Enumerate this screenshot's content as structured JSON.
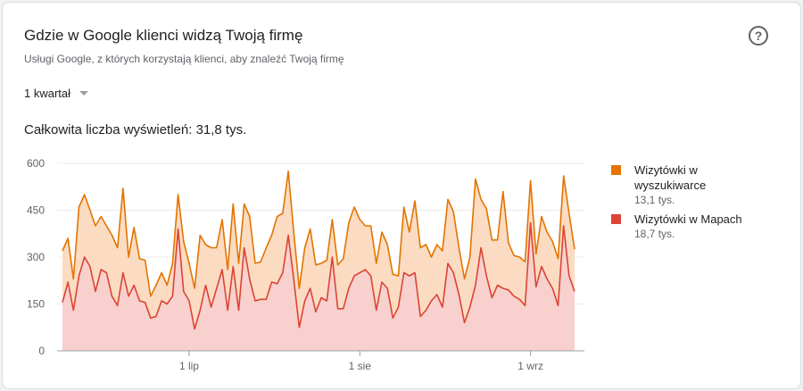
{
  "card": {
    "title": "Gdzie w Google klienci widzą Twoją firmę",
    "subtitle": "Usługi Google, z których korzystają klienci, aby znaleźć Twoją firmę",
    "help_icon": "help-circle-icon",
    "period": {
      "selected": "1 kwartał",
      "icon": "caret-down-icon"
    },
    "total": "Całkowita liczba wyświetleń: 31,8 tys."
  },
  "legend": [
    {
      "label": "Wizytówki w wyszukiwarce",
      "value": "13,1 tys.",
      "color": "#e37400"
    },
    {
      "label": "Wizytówki w Mapach",
      "value": "18,7 tys.",
      "color": "#db4437"
    }
  ],
  "chart_data": {
    "type": "area",
    "stacked": true,
    "ylim": [
      0,
      600
    ],
    "yticks": [
      0,
      150,
      300,
      450,
      600
    ],
    "x_tick_labels": [
      {
        "label": "1 lip",
        "index": 23
      },
      {
        "label": "1 sie",
        "index": 54
      },
      {
        "label": "1 wrz",
        "index": 85
      }
    ],
    "grid": true,
    "legend_position": "right",
    "series": [
      {
        "name": "Wizytówki w Mapach",
        "color": "#db4437",
        "fill": "#f8d0cd",
        "values": [
          155,
          220,
          130,
          240,
          300,
          270,
          190,
          260,
          250,
          175,
          145,
          250,
          175,
          210,
          160,
          155,
          105,
          110,
          160,
          150,
          175,
          390,
          190,
          160,
          70,
          130,
          210,
          140,
          200,
          260,
          130,
          270,
          130,
          330,
          230,
          160,
          165,
          165,
          220,
          215,
          250,
          370,
          230,
          75,
          160,
          200,
          125,
          170,
          160,
          300,
          135,
          135,
          200,
          240,
          250,
          260,
          240,
          130,
          220,
          200,
          105,
          140,
          250,
          240,
          250,
          110,
          130,
          160,
          180,
          140,
          280,
          250,
          180,
          90,
          140,
          210,
          330,
          240,
          170,
          210,
          200,
          195,
          175,
          165,
          145,
          410,
          205,
          270,
          230,
          200,
          145,
          400,
          240,
          190
        ]
      },
      {
        "name": "Wizytówki w wyszukiwarce",
        "color": "#e37400",
        "fill": "#fbdcc2",
        "values": [
          165,
          140,
          100,
          220,
          200,
          180,
          210,
          170,
          150,
          195,
          185,
          270,
          125,
          185,
          135,
          135,
          70,
          100,
          90,
          60,
          105,
          110,
          160,
          120,
          130,
          240,
          130,
          190,
          130,
          160,
          130,
          200,
          150,
          140,
          200,
          120,
          120,
          165,
          150,
          215,
          190,
          205,
          150,
          125,
          170,
          190,
          150,
          110,
          130,
          120,
          140,
          160,
          210,
          220,
          170,
          140,
          160,
          150,
          160,
          140,
          140,
          100,
          210,
          140,
          230,
          220,
          210,
          140,
          160,
          180,
          205,
          195,
          150,
          140,
          160,
          340,
          155,
          215,
          185,
          145,
          310,
          150,
          130,
          135,
          140,
          135,
          105,
          160,
          150,
          150,
          150,
          160,
          200,
          135
        ]
      }
    ]
  }
}
